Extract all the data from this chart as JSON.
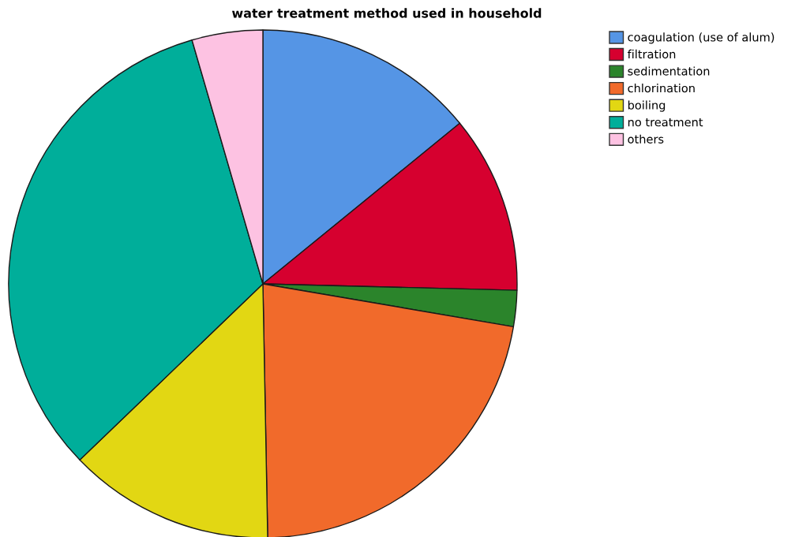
{
  "chart_data": {
    "type": "pie",
    "title": "water treatment method used in household",
    "categories": [
      "coagulation (use of alum)",
      "filtration",
      "sedimentation",
      "chlorination",
      "boiling",
      "no treatment",
      "others"
    ],
    "values": [
      14.1,
      11.3,
      2.3,
      22.0,
      13.1,
      32.7,
      4.5
    ],
    "colors": [
      "#5595e5",
      "#d6002f",
      "#2b842b",
      "#f16a2b",
      "#e2d713",
      "#00ae9a",
      "#fdc2e2"
    ],
    "legend": "top right"
  }
}
